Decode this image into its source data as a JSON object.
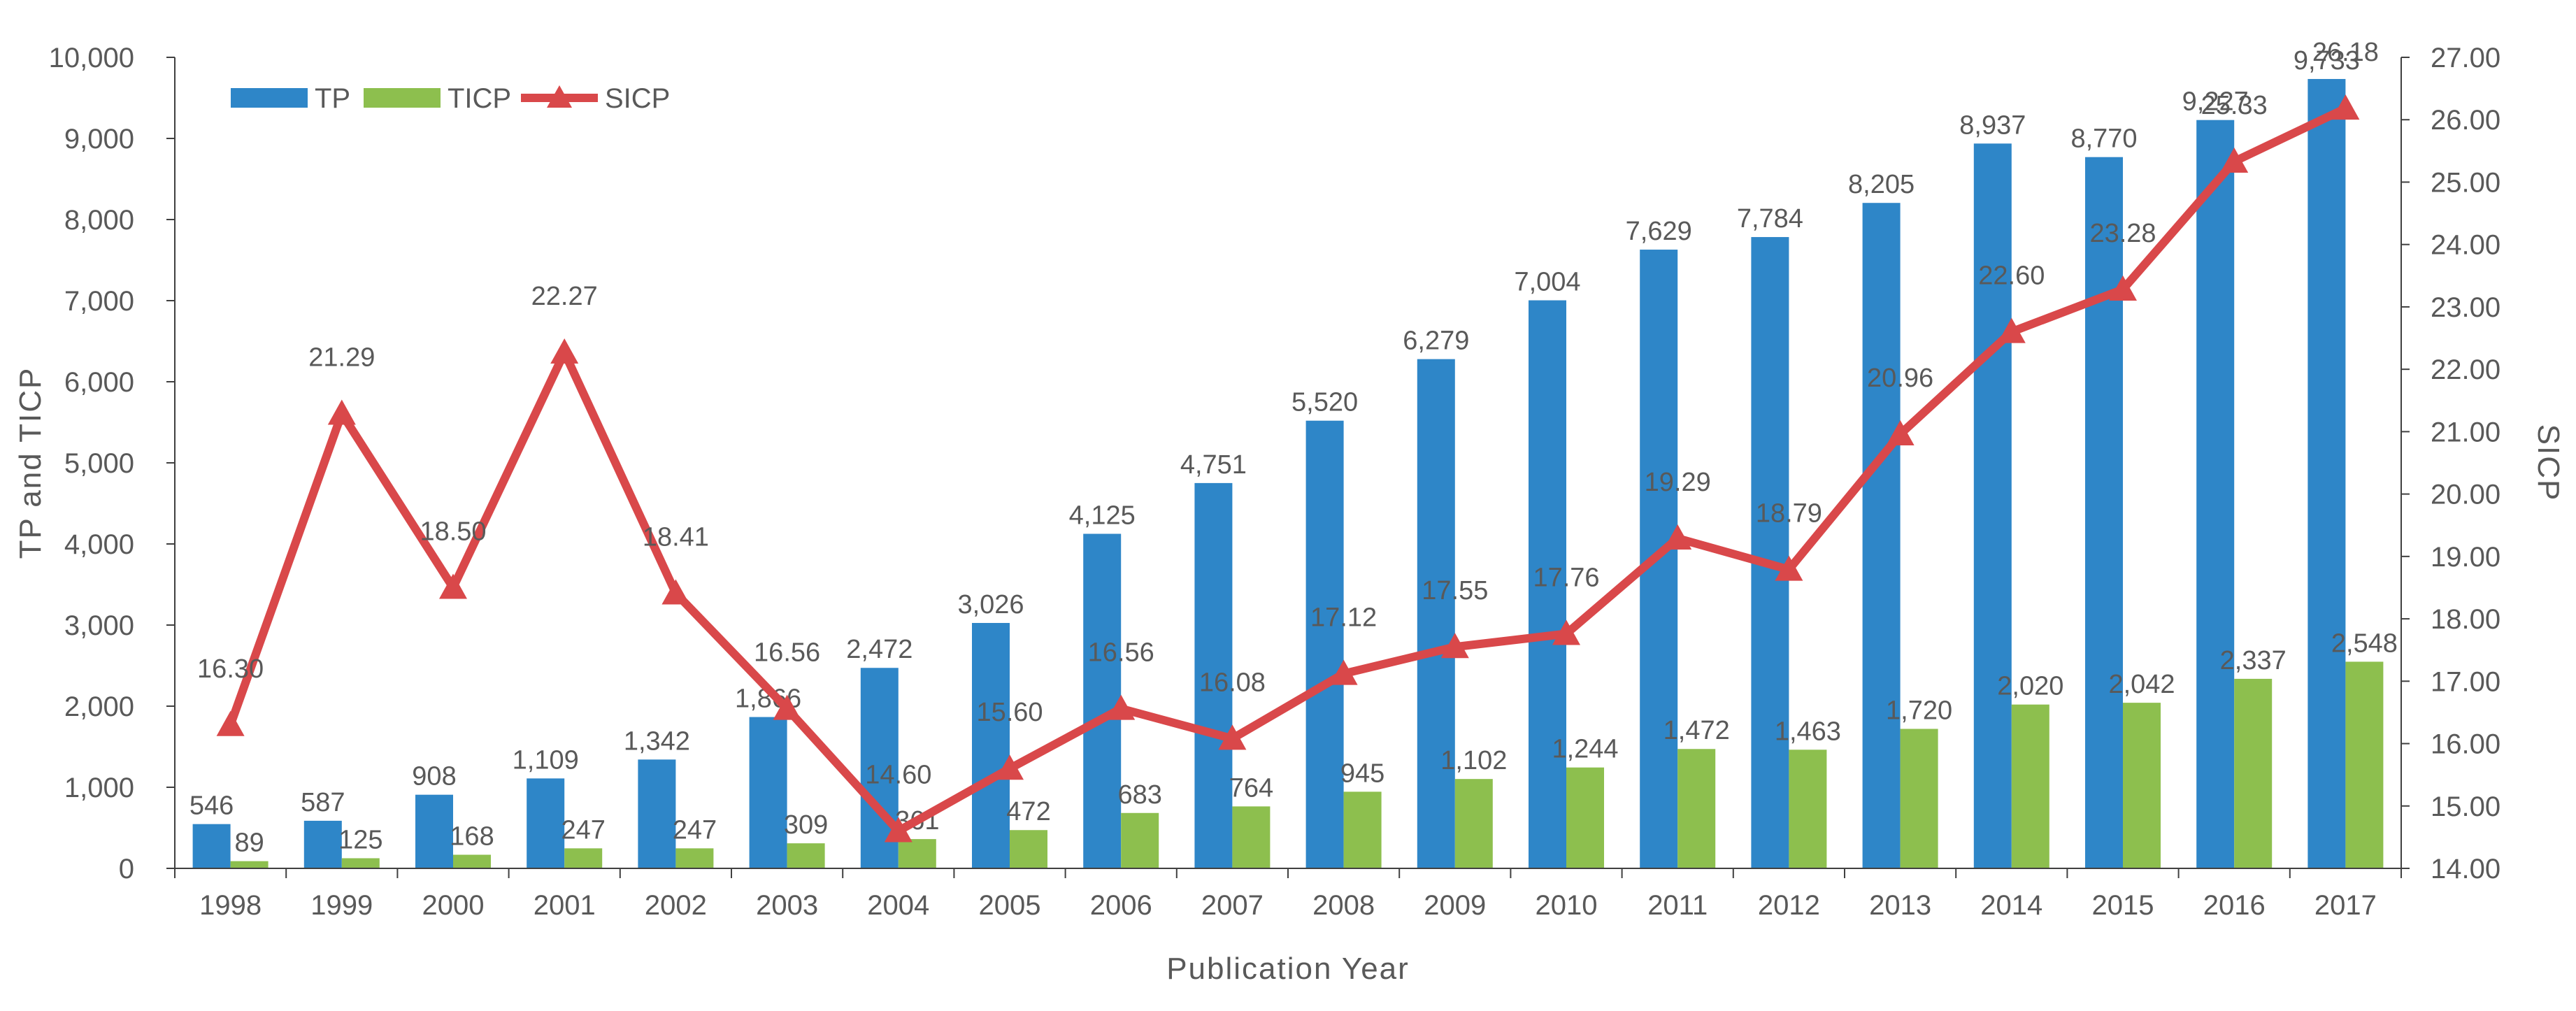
{
  "chart_data": {
    "type": "bar",
    "categories": [
      "1998",
      "1999",
      "2000",
      "2001",
      "2002",
      "2003",
      "2004",
      "2005",
      "2006",
      "2007",
      "2008",
      "2009",
      "2010",
      "2011",
      "2012",
      "2013",
      "2014",
      "2015",
      "2016",
      "2017"
    ],
    "series": [
      {
        "name": "TP",
        "kind": "bar",
        "axis": "left",
        "color": "#2E86C8",
        "values": [
          546,
          587,
          908,
          1109,
          1342,
          1866,
          2472,
          3026,
          4125,
          4751,
          5520,
          6279,
          7004,
          7629,
          7784,
          8205,
          8937,
          8770,
          9227,
          9733
        ],
        "labels": [
          "546",
          "587",
          "908",
          "1,109",
          "1,342",
          "1,866",
          "2,472",
          "3,026",
          "4,125",
          "4,751",
          "5,520",
          "6,279",
          "7,004",
          "7,629",
          "7,784",
          "8,205",
          "8,937",
          "8,770",
          "9,227",
          "9,733"
        ]
      },
      {
        "name": "TICP",
        "kind": "bar",
        "axis": "left",
        "color": "#8DBF4E",
        "values": [
          89,
          125,
          168,
          247,
          247,
          309,
          361,
          472,
          683,
          764,
          945,
          1102,
          1244,
          1472,
          1463,
          1720,
          2020,
          2042,
          2337,
          2548
        ],
        "labels": [
          "89",
          "125",
          "168",
          "247",
          "247",
          "309",
          "361",
          "472",
          "683",
          "764",
          "945",
          "1,102",
          "1,244",
          "1,472",
          "1,463",
          "1,720",
          "2,020",
          "2,042",
          "2,337",
          "2,548"
        ]
      },
      {
        "name": "SICP",
        "kind": "line",
        "axis": "right",
        "color": "#D9484A",
        "marker": "triangle",
        "values": [
          16.3,
          21.29,
          18.5,
          22.27,
          18.41,
          16.56,
          14.6,
          15.6,
          16.56,
          16.08,
          17.12,
          17.55,
          17.76,
          19.29,
          18.79,
          20.96,
          22.6,
          23.28,
          25.33,
          26.18
        ],
        "labels": [
          "16.30",
          "21.29",
          "18.50",
          "22.27",
          "18.41",
          "16.56",
          "14.60",
          "15.60",
          "16.56",
          "16.08",
          "17.12",
          "17.55",
          "17.76",
          "19.29",
          "18.79",
          "20.96",
          "22.60",
          "23.28",
          "25.33",
          "26.18"
        ]
      }
    ],
    "title": "",
    "xlabel": "Publication Year",
    "ylabel": "TP and TICP",
    "y2label": "SICP",
    "ylim": [
      0,
      10000
    ],
    "y2lim": [
      14,
      27
    ],
    "yticks": [
      "0",
      "1,000",
      "2,000",
      "3,000",
      "4,000",
      "5,000",
      "6,000",
      "7,000",
      "8,000",
      "9,000",
      "10,000"
    ],
    "y2ticks": [
      "14.00",
      "15.00",
      "16.00",
      "17.00",
      "18.00",
      "19.00",
      "20.00",
      "21.00",
      "22.00",
      "23.00",
      "24.00",
      "25.00",
      "26.00",
      "27.00"
    ],
    "grid": false,
    "legend_position": "top-left"
  }
}
